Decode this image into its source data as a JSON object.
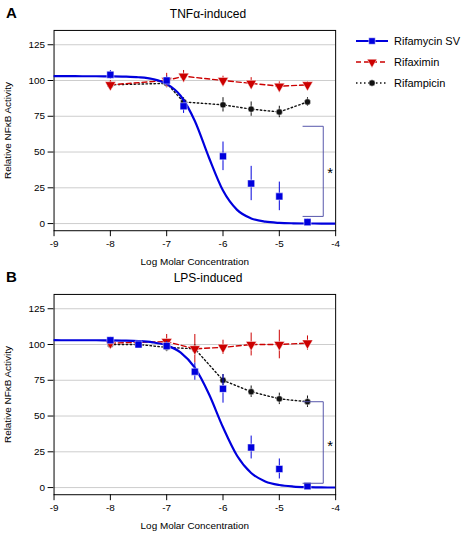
{
  "chart_data": [
    {
      "type": "line",
      "panel_label": "A",
      "title": "TNFα-induced",
      "x_label": "Log Molar Concentration",
      "y_label": "Relative NFκB Activity",
      "xlim": [
        -9,
        -4
      ],
      "ylim": [
        -5,
        135
      ],
      "xticks": [
        -9,
        -8,
        -7,
        -6,
        -5,
        -4
      ],
      "yticks": [
        0,
        25,
        50,
        75,
        100,
        125
      ],
      "grid": "y",
      "legend": "right",
      "series": [
        {
          "name": "Rifamycin SV",
          "color": "#0000dd",
          "marker": "square",
          "line_style": "none",
          "x": [
            -8,
            -7,
            -6.7,
            -6,
            -5.5,
            -5,
            -4.5
          ],
          "values": [
            104,
            100,
            82,
            47,
            28,
            19,
            1
          ],
          "yerr": [
            3,
            3,
            5,
            10,
            12,
            10,
            2
          ],
          "fit": {
            "x": [
              -9,
              -8.75,
              -8.5,
              -8.25,
              -8,
              -7.75,
              -7.5,
              -7.25,
              -7,
              -6.75,
              -6.5,
              -6.25,
              -6,
              -5.75,
              -5.5,
              -5.25,
              -5,
              -4.75,
              -4.5,
              -4.25,
              -4
            ],
            "values": [
              103.0,
              103.0,
              102.99,
              102.97,
              102.91,
              102.75,
              102.29,
              101.03,
              97.63,
              89.19,
              71.7,
              46.18,
              23.06,
              9.56,
              3.61,
              1.31,
              0.47,
              0.17,
              0.06,
              0.02,
              0.01
            ]
          }
        },
        {
          "name": "Rifaximin",
          "color": "#cc0000",
          "marker": "triangle-down",
          "line_style": "dashed",
          "x": [
            -8,
            -7,
            -6.7,
            -6,
            -5.5,
            -5,
            -4.5
          ],
          "values": [
            97,
            100,
            103,
            100,
            98,
            96,
            97
          ],
          "yerr": [
            3,
            5,
            4,
            3,
            4,
            3,
            2
          ]
        },
        {
          "name": "Rifampicin",
          "color": "#111111",
          "marker": "circle",
          "line_style": "dotted",
          "x": [
            -8,
            -7,
            -6.7,
            -6,
            -5.5,
            -5,
            -4.5
          ],
          "values": [
            97,
            98,
            85,
            83,
            80,
            78,
            85
          ],
          "yerr": [
            2,
            3,
            3,
            5,
            5,
            4,
            3
          ]
        }
      ],
      "bracket": {
        "x_left": -4.58,
        "x_right": -4.22,
        "y_top": 68,
        "y_bottom": 5,
        "color": "#5555aa"
      },
      "annotations": [
        {
          "text": "*",
          "x": -4.15,
          "y": 38
        }
      ]
    },
    {
      "type": "line",
      "panel_label": "B",
      "title": "LPS-induced",
      "x_label": "Log Molar Concentration",
      "y_label": "Relative NFκB Activity",
      "xlim": [
        -9,
        -4
      ],
      "ylim": [
        -5,
        135
      ],
      "xticks": [
        -9,
        -8,
        -7,
        -6,
        -5,
        -4
      ],
      "yticks": [
        0,
        25,
        50,
        75,
        100,
        125
      ],
      "grid": "y",
      "series": [
        {
          "name": "Rifamycin SV",
          "color": "#0000dd",
          "marker": "square",
          "line_style": "none",
          "x": [
            -8,
            -7.5,
            -7,
            -6.5,
            -6,
            -5.5,
            -5,
            -4.5
          ],
          "values": [
            103,
            100,
            99,
            81,
            69,
            28,
            13,
            1
          ],
          "yerr": [
            2,
            2,
            3,
            6,
            10,
            8,
            7,
            1
          ],
          "fit": {
            "x": [
              -9,
              -8.75,
              -8.5,
              -8.25,
              -8,
              -7.75,
              -7.5,
              -7.25,
              -7,
              -6.75,
              -6.5,
              -6.25,
              -6,
              -5.75,
              -5.5,
              -5.25,
              -5,
              -4.75,
              -4.5,
              -4.25,
              -4
            ],
            "values": [
              103.0,
              102.99,
              102.99,
              102.96,
              102.91,
              102.76,
              102.41,
              101.53,
              99.39,
              94.39,
              83.8,
              65.38,
              42.12,
              22.24,
              10.18,
              4.31,
              1.76,
              0.71,
              0.28,
              0.11,
              0.04
            ]
          }
        },
        {
          "name": "Rifaximin",
          "color": "#cc0000",
          "marker": "triangle-down",
          "line_style": "dashed",
          "x": [
            -8,
            -7,
            -6.5,
            -6,
            -5.5,
            -5,
            -4.5
          ],
          "values": [
            101,
            102,
            97,
            98,
            100,
            100,
            101
          ],
          "yerr": [
            3,
            5,
            10,
            5,
            8,
            10,
            5
          ]
        },
        {
          "name": "Rifampicin",
          "color": "#111111",
          "marker": "circle",
          "line_style": "dotted",
          "x": [
            -8,
            -7.5,
            -7,
            -6.5,
            -6,
            -5.5,
            -5,
            -4.5
          ],
          "values": [
            100,
            100,
            98,
            97,
            75,
            67,
            62,
            60
          ],
          "yerr": [
            2,
            2,
            3,
            3,
            4,
            4,
            4,
            4
          ]
        }
      ],
      "bracket": {
        "x_left": -4.58,
        "x_right": -4.22,
        "y_top": 60,
        "y_bottom": 3,
        "color": "#5555aa"
      },
      "annotations": [
        {
          "text": "*",
          "x": -4.15,
          "y": 32
        }
      ]
    }
  ]
}
